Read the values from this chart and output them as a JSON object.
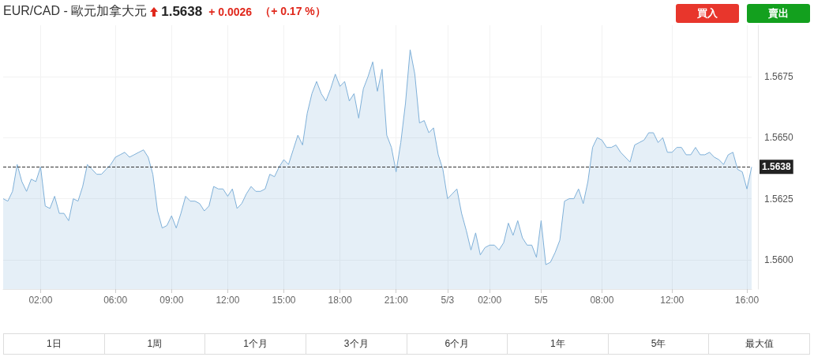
{
  "chart_data": {
    "type": "area",
    "title": "EUR/CAD - 歐元加拿大元",
    "annotations": [
      "1.5638",
      "+ 0.0026",
      "（+ 0.17 %）",
      "買入",
      "賣出",
      "1日",
      "1周",
      "1个月",
      "3个月",
      "6个月",
      "1年",
      "5年",
      "最大值"
    ],
    "categories": [
      null,
      null,
      null,
      null,
      null,
      null,
      null,
      null,
      "02:00",
      null,
      null,
      null,
      null,
      null,
      null,
      null,
      null,
      null,
      null,
      null,
      null,
      null,
      null,
      null,
      "06:00",
      null,
      null,
      null,
      null,
      null,
      null,
      null,
      null,
      null,
      null,
      null,
      "09:00",
      null,
      null,
      null,
      null,
      null,
      null,
      null,
      null,
      null,
      null,
      null,
      "12:00",
      null,
      null,
      null,
      null,
      null,
      null,
      null,
      null,
      null,
      null,
      null,
      "15:00",
      null,
      null,
      null,
      null,
      null,
      null,
      null,
      null,
      null,
      null,
      null,
      "18:00",
      null,
      null,
      null,
      null,
      null,
      null,
      null,
      null,
      null,
      null,
      null,
      "21:00",
      null,
      null,
      null,
      null,
      null,
      null,
      null,
      null,
      null,
      null,
      "5/3",
      null,
      null,
      null,
      null,
      null,
      null,
      null,
      null,
      "02:00",
      null,
      null,
      null,
      null,
      null,
      null,
      null,
      null,
      null,
      null,
      "5/5",
      null,
      null,
      null,
      null,
      null,
      null,
      null,
      null,
      null,
      null,
      null,
      null,
      "08:00",
      null,
      null,
      null,
      null,
      null,
      null,
      null,
      null,
      null,
      null,
      null,
      null,
      null,
      null,
      "12:00",
      null,
      null,
      null,
      null,
      null,
      null,
      null,
      null,
      null,
      null,
      null,
      null,
      null,
      null,
      null,
      "16:00",
      null
    ],
    "series": [
      {
        "color": "#7fb0d8",
        "values": [
          1.5625,
          1.5624,
          1.5628,
          1.5639,
          1.5632,
          1.5628,
          1.5633,
          1.5632,
          1.5638,
          1.5622,
          1.5621,
          1.5626,
          1.5619,
          1.5619,
          1.5616,
          1.5625,
          1.5624,
          1.563,
          1.5639,
          1.5637,
          1.5635,
          1.5635,
          1.5637,
          1.5639,
          1.5642,
          1.5643,
          1.5644,
          1.5642,
          1.5643,
          1.5644,
          1.5645,
          1.5642,
          1.5635,
          1.562,
          1.5613,
          1.5614,
          1.5618,
          1.5613,
          1.5619,
          1.5626,
          1.5624,
          1.5624,
          1.5623,
          1.562,
          1.5622,
          1.563,
          1.5629,
          1.5629,
          1.5626,
          1.5629,
          1.5621,
          1.5623,
          1.5627,
          1.563,
          1.5628,
          1.5628,
          1.5629,
          1.5635,
          1.5634,
          1.5638,
          1.5641,
          1.5639,
          1.5645,
          1.5651,
          1.5647,
          1.566,
          1.5668,
          1.5673,
          1.5668,
          1.5665,
          1.567,
          1.5676,
          1.5671,
          1.5673,
          1.5665,
          1.5668,
          1.5658,
          1.567,
          1.5675,
          1.5681,
          1.5669,
          1.5678,
          1.5651,
          1.5646,
          1.5636,
          1.5648,
          1.5664,
          1.5686,
          1.5676,
          1.5656,
          1.5657,
          1.5652,
          1.5654,
          1.5643,
          1.5637,
          1.5625,
          1.5627,
          1.5629,
          1.5619,
          1.5612,
          1.5604,
          1.5611,
          1.5602,
          1.5605,
          1.5606,
          1.5606,
          1.5604,
          1.5607,
          1.5615,
          1.561,
          1.5616,
          1.5609,
          1.5606,
          1.5606,
          1.5601,
          1.5616,
          1.5598,
          1.5599,
          1.5603,
          1.5608,
          1.5624,
          1.5625,
          1.5625,
          1.5629,
          1.5623,
          1.5632,
          1.5646,
          1.565,
          1.5649,
          1.5646,
          1.5646,
          1.5647,
          1.5644,
          1.5642,
          1.564,
          1.5647,
          1.5648,
          1.5649,
          1.5652,
          1.5652,
          1.5648,
          1.565,
          1.5644,
          1.5644,
          1.5646,
          1.5646,
          1.5643,
          1.5643,
          1.5646,
          1.5643,
          1.5643,
          1.5644,
          1.5642,
          1.5641,
          1.5639,
          1.5643,
          1.5644,
          1.5637,
          1.5636,
          1.5629,
          1.5638
        ]
      }
    ],
    "ylim": [
      1.5588,
      1.5696
    ],
    "yticks": [
      {
        "value": 1.56,
        "label": "1.5600"
      },
      1.5625,
      {
        "value": 1.565,
        "label": "1.5650"
      },
      1.5675
    ],
    "ref_lines": [
      {
        "axis": "y",
        "value": 1.5638,
        "label": "1.5638",
        "color": "#333333",
        "line_style": "dashed"
      }
    ],
    "grid": true,
    "marker": "none",
    "line_style": "solid"
  }
}
